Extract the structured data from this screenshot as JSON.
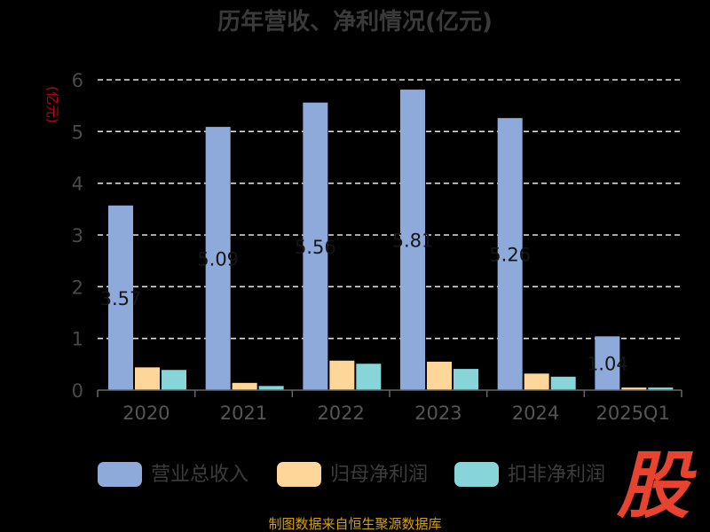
{
  "chart_data": {
    "type": "bar",
    "title": "历年营收、净利情况(亿元)",
    "unit_label": "(亿元)",
    "categories": [
      "2020",
      "2021",
      "2022",
      "2023",
      "2024",
      "2025Q1"
    ],
    "ylim": [
      0,
      6
    ],
    "yticks": [
      "0",
      "1",
      "2",
      "3",
      "4",
      "5",
      "6"
    ],
    "grid": true,
    "legend_position": "bottom",
    "series": [
      {
        "name": "营业总收入",
        "color": "#8eaadb",
        "values": [
          3.57,
          5.09,
          5.56,
          5.81,
          5.26,
          1.04
        ],
        "data_labels": [
          "3.57",
          "5.09",
          "5.56",
          "5.81",
          "5.26",
          "1.04"
        ]
      },
      {
        "name": "归母净利润",
        "color": "#ffd699",
        "values": [
          0.44,
          0.14,
          0.57,
          0.55,
          0.32,
          0.05
        ]
      },
      {
        "name": "扣非净利润",
        "color": "#87d5d9",
        "values": [
          0.39,
          0.08,
          0.51,
          0.41,
          0.26,
          0.05
        ]
      }
    ]
  },
  "footer": {
    "source": "制图数据来自恒生聚源数据库"
  },
  "logo": {
    "text": "股"
  }
}
